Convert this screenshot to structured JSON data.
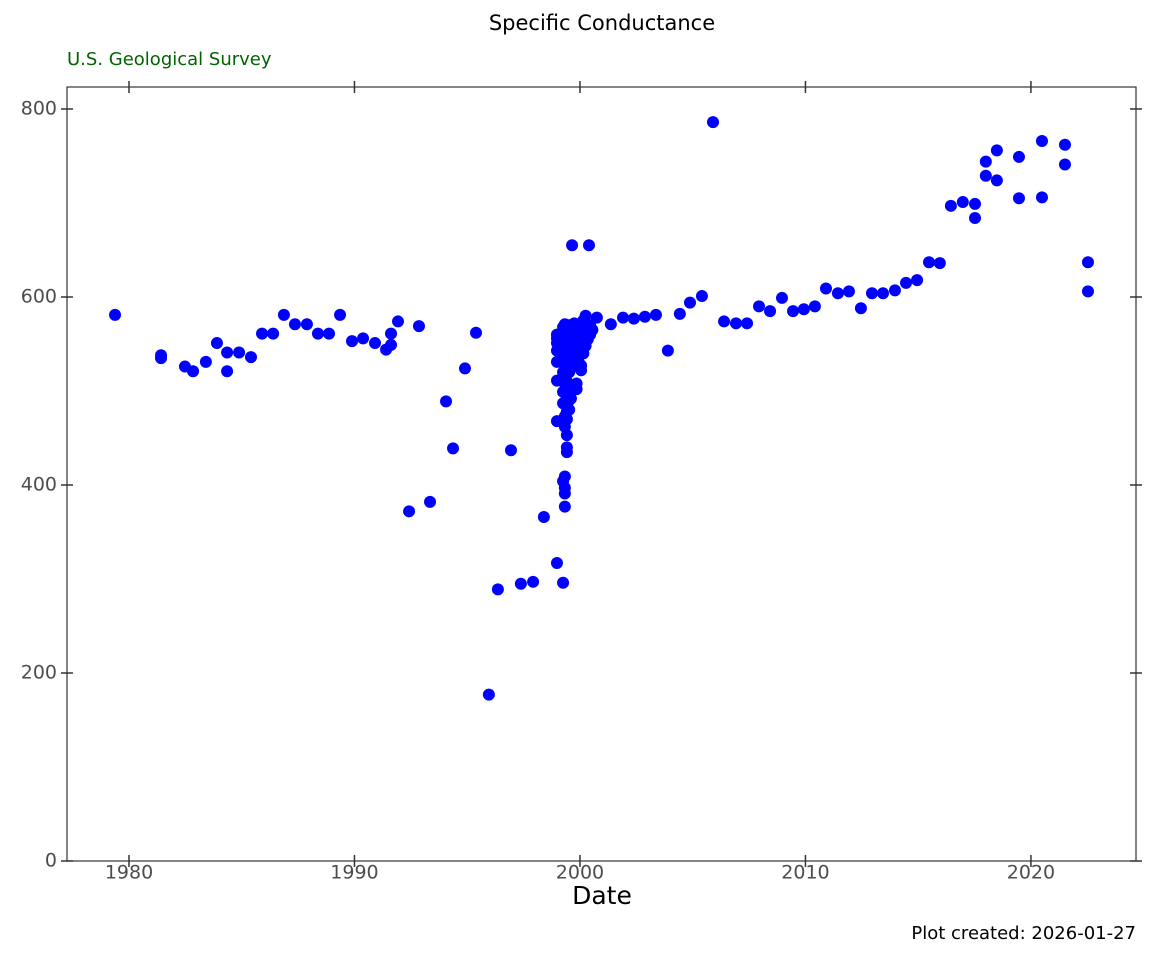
{
  "chart_data": {
    "type": "scatter",
    "title": "Specific Conductance",
    "subtitle": "U.S. Geological Survey",
    "x_label": "Date",
    "caption": "Plot created: 2026-01-27",
    "xlim": [
      1977.25,
      2024.66
    ],
    "xticks": [
      1980,
      1990,
      2000,
      2010,
      2020
    ],
    "ylim": [
      0,
      823.4
    ],
    "yticks": [
      0,
      200,
      400,
      600,
      800
    ],
    "grid": false,
    "series": [
      {
        "color": "#0000ff",
        "x": [
          1979.38,
          1981.42,
          1981.42,
          1982.48,
          1982.84,
          1983.41,
          1983.9,
          1984.35,
          1984.35,
          1984.88,
          1985.41,
          1985.9,
          1986.39,
          1986.87,
          1987.36,
          1987.89,
          1988.38,
          1988.87,
          1989.36,
          1989.89,
          1990.38,
          1990.91,
          1991.4,
          1991.62,
          1991.62,
          1991.93,
          1992.42,
          1992.86,
          1993.35,
          1994.06,
          1994.37,
          1994.9,
          1995.39,
          1995.96,
          1996.36,
          1996.94,
          1997.38,
          1997.92,
          1998.4,
          1998.98,
          1998.98,
          1998.98,
          1998.98,
          1998.98,
          1998.98,
          1998.98,
          1998.98,
          1999.25,
          1999.25,
          1999.25,
          1999.25,
          1999.25,
          1999.25,
          1999.25,
          1999.25,
          1999.25,
          1999.25,
          1999.25,
          1999.33,
          1999.33,
          1999.33,
          1999.33,
          1999.33,
          1999.33,
          1999.33,
          1999.33,
          1999.33,
          1999.33,
          1999.33,
          1999.42,
          1999.42,
          1999.42,
          1999.42,
          1999.42,
          1999.42,
          1999.42,
          1999.42,
          1999.42,
          1999.42,
          1999.52,
          1999.52,
          1999.52,
          1999.52,
          1999.52,
          1999.52,
          1999.52,
          1999.6,
          1999.6,
          1999.6,
          1999.6,
          1999.6,
          1999.65,
          1999.75,
          1999.75,
          1999.75,
          1999.75,
          1999.75,
          1999.85,
          1999.85,
          1999.85,
          1999.85,
          1999.85,
          1999.95,
          1999.95,
          1999.95,
          1999.95,
          2000.05,
          2000.05,
          2000.05,
          2000.05,
          2000.05,
          2000.05,
          2000.15,
          2000.15,
          2000.15,
          2000.15,
          2000.25,
          2000.25,
          2000.25,
          2000.4,
          2000.35,
          2000.35,
          2000.45,
          2000.45,
          2000.55,
          2000.75,
          2001.37,
          2001.91,
          2002.39,
          2002.88,
          2003.37,
          2003.9,
          2004.43,
          2004.88,
          2005.41,
          2005.9,
          2006.39,
          2006.92,
          2007.41,
          2007.94,
          2008.43,
          2008.96,
          2009.45,
          2009.93,
          2010.42,
          2010.91,
          2011.44,
          2011.93,
          2012.46,
          2012.95,
          2013.44,
          2013.97,
          2014.46,
          2014.95,
          2015.48,
          2015.96,
          2016.45,
          2016.98,
          2017.52,
          2017.52,
          2018.0,
          2018.0,
          2018.49,
          2018.49,
          2019.47,
          2019.47,
          2020.49,
          2020.49,
          2021.51,
          2021.51,
          2022.53,
          2022.53
        ],
        "values": [
          581,
          538,
          535,
          526,
          521,
          531,
          551,
          541,
          521,
          541,
          536,
          561,
          561,
          581,
          571,
          571,
          561,
          561,
          581,
          553,
          556,
          551,
          544,
          549,
          561,
          574,
          372,
          569,
          382,
          489,
          439,
          524,
          562,
          177,
          289,
          437,
          295,
          297,
          366,
          317,
          468,
          511,
          531,
          543,
          551,
          556,
          560,
          296,
          404,
          487,
          499,
          510,
          520,
          530,
          540,
          550,
          560,
          568,
          377,
          391,
          397,
          409,
          462,
          473,
          500,
          521,
          545,
          563,
          571,
          435,
          440,
          453,
          470,
          478,
          490,
          510,
          530,
          550,
          565,
          480,
          490,
          500,
          520,
          540,
          555,
          570,
          492,
          525,
          545,
          560,
          568,
          655,
          505,
          530,
          550,
          565,
          572,
          502,
          508,
          540,
          555,
          570,
          530,
          545,
          560,
          570,
          522,
          527,
          540,
          555,
          565,
          572,
          540,
          550,
          560,
          575,
          548,
          565,
          580,
          655,
          555,
          565,
          560,
          570,
          565,
          578,
          571,
          578,
          577,
          579,
          581,
          543,
          582,
          594,
          601,
          786,
          574,
          572,
          572,
          590,
          585,
          599,
          585,
          587,
          590,
          609,
          604,
          606,
          588,
          604,
          604,
          607,
          615,
          618,
          637,
          636,
          697,
          701,
          699,
          684,
          744,
          729,
          756,
          724,
          749,
          705,
          766,
          706,
          762,
          741,
          637,
          606
        ]
      }
    ]
  }
}
